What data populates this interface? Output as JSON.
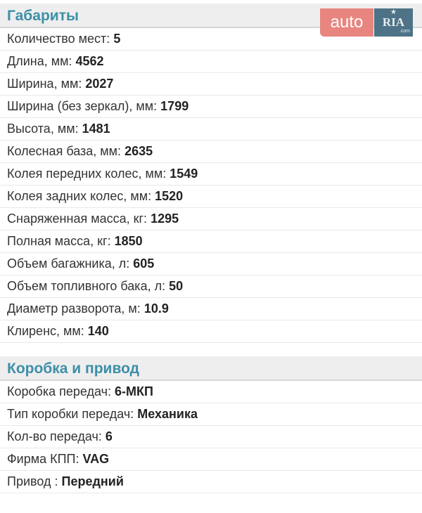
{
  "logo": {
    "left": "auto",
    "right": "RIA",
    "sub": ".com"
  },
  "sections": [
    {
      "title": "Габариты",
      "rows": [
        {
          "label": "Количество мест:",
          "value": "5"
        },
        {
          "label": "Длина, мм:",
          "value": "4562"
        },
        {
          "label": "Ширина, мм:",
          "value": "2027"
        },
        {
          "label": "Ширина (без зеркал), мм:",
          "value": "1799"
        },
        {
          "label": "Высота, мм:",
          "value": "1481"
        },
        {
          "label": "Колесная база, мм:",
          "value": "2635"
        },
        {
          "label": "Колея передних колес, мм:",
          "value": "1549"
        },
        {
          "label": "Колея задних колес, мм:",
          "value": "1520"
        },
        {
          "label": "Снаряженная масса, кг:",
          "value": "1295"
        },
        {
          "label": "Полная масса, кг:",
          "value": "1850"
        },
        {
          "label": "Объем багажника, л:",
          "value": "605"
        },
        {
          "label": "Объем топливного бака, л:",
          "value": "50"
        },
        {
          "label": "Диаметр разворота, м:",
          "value": "10.9"
        },
        {
          "label": "Клиренс, мм:",
          "value": "140"
        }
      ]
    },
    {
      "title": "Коробка и привод",
      "rows": [
        {
          "label": "Коробка передач:",
          "value": "6-МКП"
        },
        {
          "label": "Тип коробки передач:",
          "value": "Механика"
        },
        {
          "label": "Кол-во передач:",
          "value": "6"
        },
        {
          "label": "Фирма КПП:",
          "value": "VAG"
        },
        {
          "label": "Привод :",
          "value": "Передний"
        }
      ]
    }
  ]
}
